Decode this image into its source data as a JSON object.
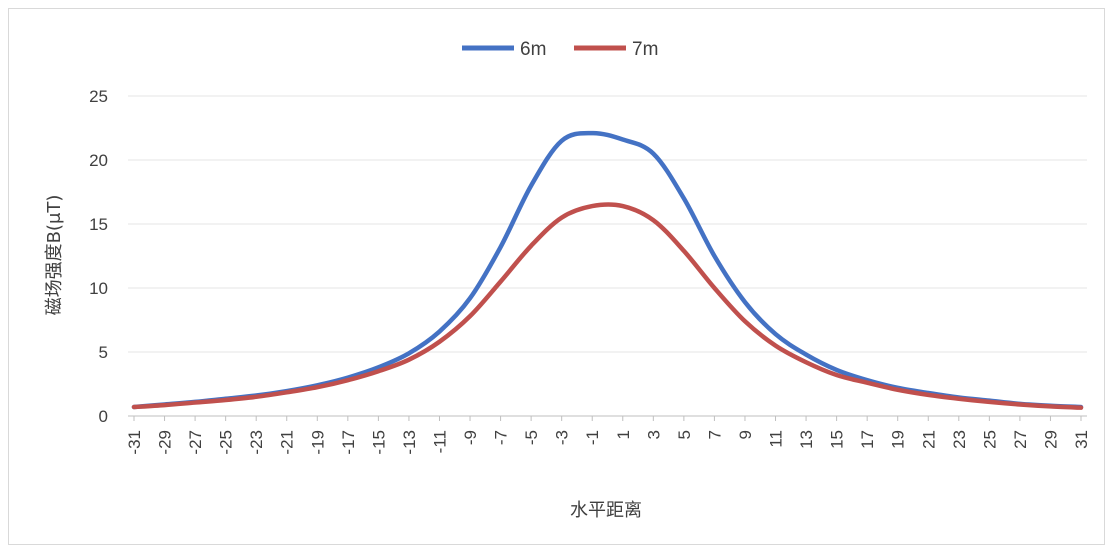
{
  "chart_data": {
    "type": "line",
    "title": "",
    "xlabel": "水平距离",
    "ylabel": "磁场强度B(μT)",
    "ylim": [
      0,
      25
    ],
    "yticks": [
      0,
      5,
      10,
      15,
      20,
      25
    ],
    "xlim": [
      -31,
      31
    ],
    "xticks": [
      -31,
      -29,
      -27,
      -25,
      -23,
      -21,
      -19,
      -17,
      -15,
      -13,
      -11,
      -9,
      -7,
      -5,
      -3,
      -1,
      1,
      3,
      5,
      7,
      9,
      11,
      13,
      15,
      17,
      19,
      21,
      23,
      25,
      27,
      29,
      31
    ],
    "grid": true,
    "legend": "top",
    "x": [
      -31,
      -29,
      -27,
      -25,
      -23,
      -21,
      -19,
      -17,
      -15,
      -13,
      -11,
      -9,
      -7,
      -5,
      -3,
      -1,
      1,
      3,
      5,
      7,
      9,
      11,
      13,
      15,
      17,
      19,
      21,
      23,
      25,
      27,
      29,
      31
    ],
    "series": [
      {
        "name": "6m",
        "color": "#4472c4",
        "values": [
          0.7,
          0.9,
          1.1,
          1.35,
          1.6,
          1.95,
          2.4,
          3.0,
          3.8,
          4.9,
          6.6,
          9.2,
          13.2,
          18.0,
          21.5,
          22.1,
          21.6,
          20.5,
          17.0,
          12.5,
          8.9,
          6.4,
          4.8,
          3.6,
          2.8,
          2.2,
          1.8,
          1.45,
          1.2,
          0.95,
          0.8,
          0.7
        ]
      },
      {
        "name": "7m",
        "color": "#c0504d",
        "values": [
          0.7,
          0.85,
          1.05,
          1.25,
          1.5,
          1.85,
          2.25,
          2.8,
          3.5,
          4.4,
          5.8,
          7.8,
          10.5,
          13.3,
          15.5,
          16.4,
          16.4,
          15.3,
          12.9,
          10.0,
          7.4,
          5.5,
          4.2,
          3.2,
          2.6,
          2.05,
          1.65,
          1.35,
          1.1,
          0.9,
          0.75,
          0.65
        ]
      }
    ]
  }
}
